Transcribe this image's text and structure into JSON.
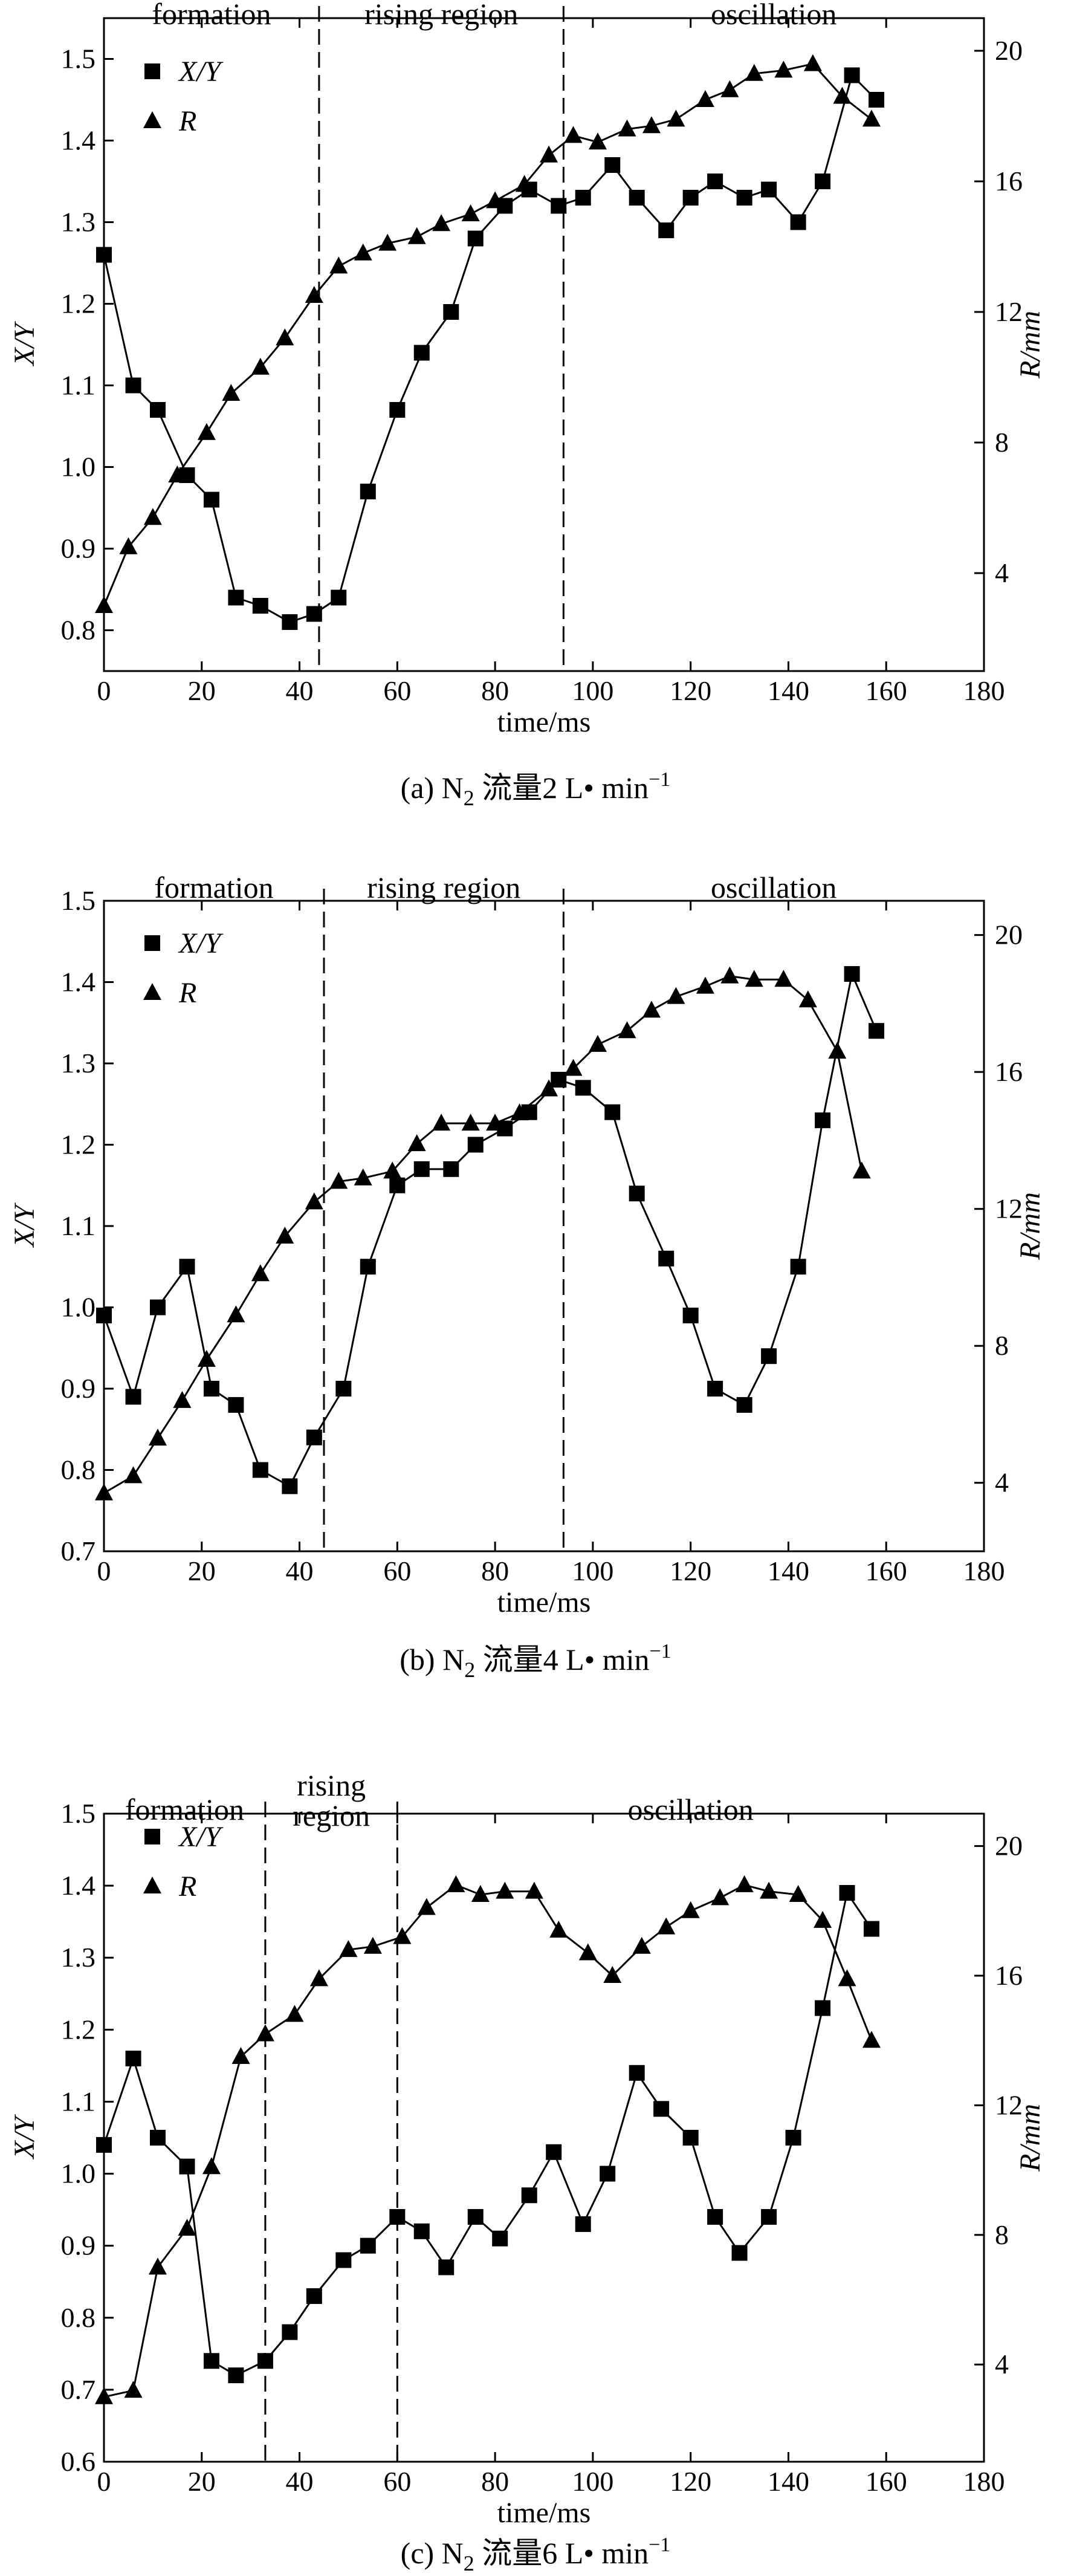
{
  "chart_data": [
    {
      "type": "line",
      "panel": "a",
      "caption": {
        "prefix": "(a) N",
        "sub": "2",
        "rest": " 流量2 L• min",
        "sup": "−1"
      },
      "xlabel": "time/ms",
      "ylabel": "X/Y",
      "y2label": "R/mm",
      "xlim": [
        0,
        180
      ],
      "ylim": [
        0.75,
        1.55
      ],
      "y2lim": [
        1,
        21
      ],
      "xticks": [
        0,
        20,
        40,
        60,
        80,
        100,
        120,
        140,
        160,
        180
      ],
      "yticks": [
        0.8,
        0.9,
        1.0,
        1.1,
        1.2,
        1.3,
        1.4,
        1.5
      ],
      "ytick_labels": [
        "0.8",
        "0.9",
        "1.0",
        "1.1",
        "1.2",
        "1.3",
        "1.4",
        "1.5"
      ],
      "y2ticks": [
        4,
        8,
        12,
        16,
        20
      ],
      "regions": [
        {
          "label": "formation",
          "x_start": 0,
          "x_end": 44
        },
        {
          "label": "rising region",
          "x_start": 44,
          "x_end": 94
        },
        {
          "label": "oscillation",
          "x_start": 94,
          "x_end": 180
        }
      ],
      "dividers": [
        44,
        94
      ],
      "legend": [
        "X/Y",
        "R"
      ],
      "series": [
        {
          "name": "X/Y",
          "marker": "square",
          "axis": "left",
          "x": [
            0,
            6,
            11,
            17,
            22,
            27,
            32,
            38,
            43,
            48,
            54,
            60,
            65,
            71,
            76,
            82,
            87,
            93,
            98,
            104,
            109,
            115,
            120,
            125,
            131,
            136,
            142,
            147,
            153,
            158
          ],
          "y": [
            1.26,
            1.1,
            1.07,
            0.99,
            0.96,
            0.84,
            0.83,
            0.81,
            0.82,
            0.84,
            0.97,
            1.07,
            1.14,
            1.19,
            1.28,
            1.32,
            1.34,
            1.32,
            1.33,
            1.37,
            1.33,
            1.29,
            1.33,
            1.35,
            1.33,
            1.34,
            1.3,
            1.35,
            1.48,
            1.45
          ]
        },
        {
          "name": "R",
          "marker": "triangle",
          "axis": "right",
          "x": [
            0,
            5,
            10,
            15,
            21,
            26,
            32,
            37,
            43,
            48,
            53,
            58,
            64,
            69,
            75,
            80,
            86,
            91,
            96,
            101,
            107,
            112,
            117,
            123,
            128,
            133,
            139,
            145,
            151,
            157
          ],
          "y": [
            3.0,
            4.8,
            5.7,
            7.0,
            8.3,
            9.5,
            10.3,
            11.2,
            12.5,
            13.4,
            13.8,
            14.1,
            14.3,
            14.7,
            15.0,
            15.4,
            15.9,
            16.8,
            17.4,
            17.2,
            17.6,
            17.7,
            17.9,
            18.5,
            18.8,
            19.3,
            19.4,
            19.6,
            18.6,
            17.9
          ]
        }
      ]
    },
    {
      "type": "line",
      "panel": "b",
      "caption": {
        "prefix": "(b) N",
        "sub": "2",
        "rest": " 流量4 L• min",
        "sup": "−1"
      },
      "xlabel": "time/ms",
      "ylabel": "X/Y",
      "y2label": "R/mm",
      "xlim": [
        0,
        180
      ],
      "ylim": [
        0.7,
        1.5
      ],
      "y2lim": [
        2,
        21
      ],
      "xticks": [
        0,
        20,
        40,
        60,
        80,
        100,
        120,
        140,
        160,
        180
      ],
      "yticks": [
        0.7,
        0.8,
        0.9,
        1.0,
        1.1,
        1.2,
        1.3,
        1.4,
        1.5
      ],
      "ytick_labels": [
        "0.7",
        "0.8",
        "0.9",
        "1.0",
        "1.1",
        "1.2",
        "1.3",
        "1.4",
        "1.5"
      ],
      "y2ticks": [
        4,
        8,
        12,
        16,
        20
      ],
      "regions": [
        {
          "label": "formation",
          "x_start": 0,
          "x_end": 45
        },
        {
          "label": "rising region",
          "x_start": 45,
          "x_end": 94
        },
        {
          "label": "oscillation",
          "x_start": 94,
          "x_end": 180
        }
      ],
      "dividers": [
        45,
        94
      ],
      "legend": [
        "X/Y",
        "R"
      ],
      "series": [
        {
          "name": "X/Y",
          "marker": "square",
          "axis": "left",
          "x": [
            0,
            6,
            11,
            17,
            22,
            27,
            32,
            38,
            43,
            49,
            54,
            60,
            65,
            71,
            76,
            82,
            87,
            93,
            98,
            104,
            109,
            115,
            120,
            125,
            131,
            136,
            142,
            147,
            153,
            158
          ],
          "y": [
            0.99,
            0.89,
            1.0,
            1.05,
            0.9,
            0.88,
            0.8,
            0.78,
            0.84,
            0.9,
            1.05,
            1.15,
            1.17,
            1.17,
            1.2,
            1.22,
            1.24,
            1.28,
            1.27,
            1.24,
            1.14,
            1.06,
            0.99,
            0.9,
            0.88,
            0.94,
            1.05,
            1.23,
            1.41,
            1.34
          ]
        },
        {
          "name": "R",
          "marker": "triangle",
          "axis": "right",
          "x": [
            0,
            6,
            11,
            16,
            21,
            27,
            32,
            37,
            43,
            48,
            53,
            59,
            64,
            69,
            75,
            80,
            85,
            91,
            96,
            101,
            107,
            112,
            117,
            123,
            128,
            133,
            139,
            144,
            150,
            155
          ],
          "y": [
            3.7,
            4.2,
            5.3,
            6.4,
            7.6,
            8.9,
            10.1,
            11.2,
            12.2,
            12.8,
            12.9,
            13.1,
            13.9,
            14.5,
            14.5,
            14.5,
            14.8,
            15.5,
            16.1,
            16.8,
            17.2,
            17.8,
            18.2,
            18.5,
            18.8,
            18.7,
            18.7,
            18.1,
            16.6,
            13.1
          ]
        }
      ]
    },
    {
      "type": "line",
      "panel": "c",
      "caption": {
        "prefix": "(c) N",
        "sub": "2",
        "rest": " 流量6 L• min",
        "sup": "−1"
      },
      "xlabel": "time/ms",
      "ylabel": "X/Y",
      "y2label": "R/mm",
      "xlim": [
        0,
        180
      ],
      "ylim": [
        0.6,
        1.5
      ],
      "y2lim": [
        1,
        21
      ],
      "xticks": [
        0,
        20,
        40,
        60,
        80,
        100,
        120,
        140,
        160,
        180
      ],
      "yticks": [
        0.6,
        0.7,
        0.8,
        0.9,
        1.0,
        1.1,
        1.2,
        1.3,
        1.4,
        1.5
      ],
      "ytick_labels": [
        "0.6",
        "0.7",
        "0.8",
        "0.9",
        "1.0",
        "1.1",
        "1.2",
        "1.3",
        "1.4",
        "1.5"
      ],
      "y2ticks": [
        4,
        8,
        12,
        16,
        20
      ],
      "regions": [
        {
          "label": "formation",
          "x_start": 0,
          "x_end": 33
        },
        {
          "label": "rising\nregion",
          "x_start": 33,
          "x_end": 60
        },
        {
          "label": "oscillation",
          "x_start": 60,
          "x_end": 180
        }
      ],
      "dividers": [
        33,
        60
      ],
      "legend": [
        "X/Y",
        "R"
      ],
      "series": [
        {
          "name": "X/Y",
          "marker": "square",
          "axis": "left",
          "x": [
            0,
            6,
            11,
            17,
            22,
            27,
            33,
            38,
            43,
            49,
            54,
            60,
            65,
            70,
            76,
            81,
            87,
            92,
            98,
            103,
            109,
            114,
            120,
            125,
            130,
            136,
            141,
            147,
            152,
            157
          ],
          "y": [
            1.04,
            1.16,
            1.05,
            1.01,
            0.74,
            0.72,
            0.74,
            0.78,
            0.83,
            0.88,
            0.9,
            0.94,
            0.92,
            0.87,
            0.94,
            0.91,
            0.97,
            1.03,
            0.93,
            1.0,
            1.14,
            1.09,
            1.05,
            0.94,
            0.89,
            0.94,
            1.05,
            1.23,
            1.39,
            1.34
          ]
        },
        {
          "name": "R",
          "marker": "triangle",
          "axis": "right",
          "x": [
            0,
            6,
            11,
            17,
            22,
            28,
            33,
            39,
            44,
            50,
            55,
            61,
            66,
            72,
            77,
            82,
            88,
            93,
            99,
            104,
            110,
            115,
            120,
            126,
            131,
            136,
            142,
            147,
            152,
            157
          ],
          "y": [
            3.0,
            3.2,
            7.0,
            8.2,
            10.1,
            13.5,
            14.2,
            14.8,
            15.9,
            16.8,
            16.9,
            17.2,
            18.1,
            18.8,
            18.5,
            18.6,
            18.6,
            17.4,
            16.7,
            16.0,
            16.9,
            17.5,
            18.0,
            18.4,
            18.8,
            18.6,
            18.5,
            17.7,
            15.9,
            14.0
          ]
        }
      ]
    }
  ]
}
